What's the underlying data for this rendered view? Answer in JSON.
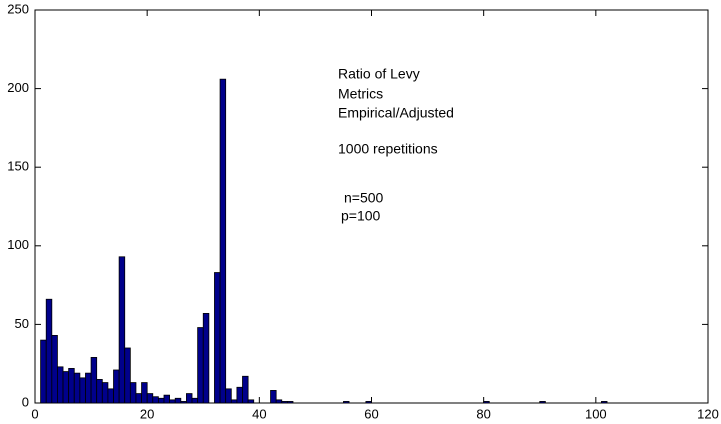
{
  "chart_data": {
    "type": "histogram",
    "annotations": [
      "Ratio of Levy",
      "Metrics",
      "Empirical/Adjusted",
      "1000 repetitions",
      "n=500",
      "p=100"
    ],
    "bins": [
      1,
      2,
      3,
      4,
      5,
      6,
      7,
      8,
      9,
      10,
      11,
      12,
      13,
      14,
      15,
      16,
      17,
      18,
      19,
      20,
      21,
      22,
      23,
      24,
      25,
      26,
      27,
      28,
      29,
      30,
      31,
      32,
      33,
      34,
      35,
      36,
      37,
      38,
      39,
      40,
      41,
      42,
      43,
      44,
      45,
      46,
      47,
      48,
      49,
      50,
      51,
      52,
      53,
      54,
      55,
      56,
      57,
      58,
      59,
      60,
      61,
      62,
      63,
      64,
      65,
      66,
      67,
      68,
      69,
      70,
      71,
      72,
      73,
      74,
      75,
      76,
      77,
      78,
      79,
      80,
      81,
      82,
      83,
      84,
      85,
      86,
      87,
      88,
      89,
      90,
      91,
      92,
      93,
      94,
      95,
      96,
      97,
      98,
      99,
      100,
      101,
      102
    ],
    "values": [
      40,
      66,
      43,
      23,
      20,
      22,
      19,
      16,
      19,
      29,
      15,
      13,
      9,
      21,
      93,
      35,
      13,
      6,
      13,
      6,
      4,
      3,
      5,
      2,
      3,
      1,
      6,
      3,
      48,
      57,
      0,
      83,
      206,
      9,
      2,
      10,
      17,
      2,
      0,
      0,
      0,
      8,
      2,
      1,
      1,
      0,
      0,
      0,
      0,
      0,
      0,
      0,
      0,
      0,
      1,
      0,
      0,
      0,
      1,
      0,
      0,
      0,
      0,
      0,
      0,
      0,
      0,
      0,
      0,
      0,
      0,
      0,
      0,
      0,
      0,
      0,
      0,
      0,
      0,
      1,
      0,
      0,
      0,
      0,
      0,
      0,
      0,
      0,
      0,
      1,
      0,
      0,
      0,
      0,
      0,
      0,
      0,
      0,
      0,
      0,
      1
    ],
    "color": "#00008b",
    "xlim": [
      0,
      120
    ],
    "xticks": [
      0,
      20,
      40,
      60,
      80,
      100,
      120
    ],
    "ylim": [
      0,
      250
    ],
    "yticks": [
      0,
      50,
      100,
      150,
      200,
      250
    ],
    "grid": false
  }
}
